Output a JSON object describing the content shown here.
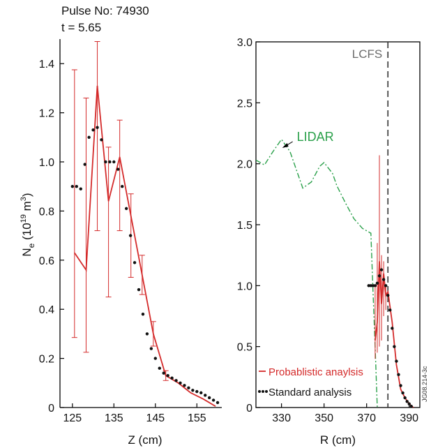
{
  "header": {
    "pulse": "Pulse No: 74930",
    "time": "t = 5.65"
  },
  "chart_data": [
    {
      "type": "line",
      "xlabel": "Z (cm)",
      "ylabel": "Ne (10^19 m^3)",
      "ylabel_main": "N",
      "ylabel_sub": "e",
      "ylabel_rest": " (10",
      "ylabel_sup": "19",
      "ylabel_end": " m",
      "ylabel_sup2": "3",
      "ylabel_close": ")",
      "xlim": [
        122,
        161
      ],
      "ylim": [
        0,
        1.5
      ],
      "xticks": [
        125,
        135,
        145,
        155
      ],
      "yticks": [
        0,
        0.2,
        0.4,
        0.6,
        0.8,
        1.0,
        1.2,
        1.4
      ],
      "ytick_labels": [
        "0",
        "0.2",
        "0.4",
        "0.6",
        "0.8",
        "1.0",
        "1.2",
        "1.4"
      ],
      "series": [
        {
          "style": "solid-with-errorbars",
          "color": "#d42a2a",
          "points": [
            {
              "x": 125.5,
              "y": 0.63,
              "err_lo": 0.285,
              "err_hi": 1.375
            },
            {
              "x": 128.3,
              "y": 0.56,
              "err_lo": 0.225,
              "err_hi": 1.26
            },
            {
              "x": 131.0,
              "y": 1.31,
              "err_lo": 0.72,
              "err_hi": 1.49
            },
            {
              "x": 133.7,
              "y": 0.84,
              "err_lo": 0.45,
              "err_hi": 1.06
            },
            {
              "x": 136.4,
              "y": 1.02,
              "err_lo": 0.72,
              "err_hi": 1.17
            },
            {
              "x": 139.1,
              "y": 0.78,
              "err_lo": 0.53,
              "err_hi": 0.87
            },
            {
              "x": 141.8,
              "y": 0.54,
              "err_lo": 0.46,
              "err_hi": 0.62
            },
            {
              "x": 144.5,
              "y": 0.3,
              "err_lo": 0.25,
              "err_hi": 0.35
            },
            {
              "x": 147.5,
              "y": 0.13,
              "err_lo": 0.11,
              "err_hi": 0.15
            },
            {
              "x": 150.5,
              "y": 0.1
            },
            {
              "x": 153.5,
              "y": 0.06
            },
            {
              "x": 156.5,
              "y": 0.035
            },
            {
              "x": 159.5,
              "y": 0.005
            }
          ]
        },
        {
          "style": "dotted",
          "color": "#111111",
          "x": [
            125,
            126,
            127,
            128,
            129,
            130,
            131,
            132,
            133,
            134,
            135,
            136,
            137,
            138,
            139,
            140,
            141,
            142,
            143,
            144,
            145,
            146,
            147,
            148,
            149,
            150,
            151,
            152,
            153,
            154,
            155,
            156,
            157,
            158,
            159,
            160
          ],
          "y": [
            0.9,
            0.9,
            0.89,
            0.99,
            1.1,
            1.13,
            1.14,
            1.09,
            1.0,
            1.0,
            1.0,
            0.97,
            0.9,
            0.81,
            0.7,
            0.59,
            0.48,
            0.38,
            0.3,
            0.24,
            0.2,
            0.16,
            0.14,
            0.13,
            0.12,
            0.11,
            0.1,
            0.09,
            0.08,
            0.07,
            0.065,
            0.06,
            0.05,
            0.04,
            0.03,
            0.02
          ]
        }
      ]
    },
    {
      "type": "line",
      "xlabel": "R (cm)",
      "xlim": [
        318,
        395
      ],
      "ylim": [
        0,
        3.0
      ],
      "xticks": [
        330,
        350,
        370,
        390
      ],
      "yticks": [
        0,
        0.5,
        1.0,
        1.5,
        2.0,
        2.5,
        3.0
      ],
      "ytick_labels": [
        "0",
        "0.5",
        "1.0",
        "1.5",
        "2.0",
        "2.5",
        "3.0"
      ],
      "lcfs": {
        "x": 380,
        "label": "LCFS"
      },
      "annotation": {
        "text": "LIDAR",
        "target_x": 330,
        "target_y": 2.13
      },
      "legend": {
        "position": "bottom-left",
        "entries": [
          "Probablistic anaylsis",
          "Standard analysis"
        ]
      },
      "watermark": "JG08.214-3c",
      "series": [
        {
          "name": "LIDAR",
          "style": "dash-dot",
          "color": "#2aa04a",
          "x": [
            318,
            322,
            326,
            330,
            334,
            338,
            340,
            344,
            348,
            350,
            354,
            356,
            360,
            364,
            368,
            372,
            373,
            374,
            375
          ],
          "y": [
            2.03,
            1.99,
            2.1,
            2.2,
            2.1,
            1.9,
            1.8,
            1.85,
            1.98,
            2.01,
            1.92,
            1.82,
            1.68,
            1.55,
            1.47,
            1.43,
            0.95,
            0.5,
            0.0
          ]
        },
        {
          "name": "Probablistic anaylsis",
          "style": "solid-with-errorbars",
          "color": "#d42a2a",
          "points": [
            {
              "x": 374.0,
              "y": 0.55,
              "err_lo": 0.4,
              "err_hi": 1.0
            },
            {
              "x": 375.0,
              "y": 0.7,
              "err_lo": 0.45,
              "err_hi": 1.35
            },
            {
              "x": 376.0,
              "y": 1.2,
              "err_lo": 0.5,
              "err_hi": 2.07
            },
            {
              "x": 377.0,
              "y": 0.85,
              "err_lo": 0.55,
              "err_hi": 1.25
            },
            {
              "x": 378.0,
              "y": 1.1,
              "err_lo": 0.75,
              "err_hi": 1.2
            },
            {
              "x": 379.0,
              "y": 0.92,
              "err_lo": 0.8,
              "err_hi": 1.0
            },
            {
              "x": 380.0,
              "y": 0.95
            },
            {
              "x": 382.0,
              "y": 0.7
            },
            {
              "x": 384.0,
              "y": 0.35
            },
            {
              "x": 386.0,
              "y": 0.15
            },
            {
              "x": 388.0,
              "y": 0.08
            },
            {
              "x": 390.0,
              "y": 0.03
            },
            {
              "x": 392.0,
              "y": 0.0
            }
          ]
        },
        {
          "name": "Standard analysis",
          "style": "dotted",
          "color": "#111111",
          "x": [
            371,
            372,
            373,
            374,
            375,
            376,
            377,
            378,
            379,
            380,
            381,
            382,
            383,
            384,
            385,
            386,
            387,
            388,
            389,
            390,
            391
          ],
          "y": [
            1.0,
            1.0,
            1.0,
            1.0,
            1.02,
            1.08,
            1.13,
            1.05,
            1.0,
            0.92,
            0.8,
            0.65,
            0.5,
            0.38,
            0.27,
            0.18,
            0.12,
            0.08,
            0.05,
            0.03,
            0.01
          ]
        }
      ]
    }
  ]
}
